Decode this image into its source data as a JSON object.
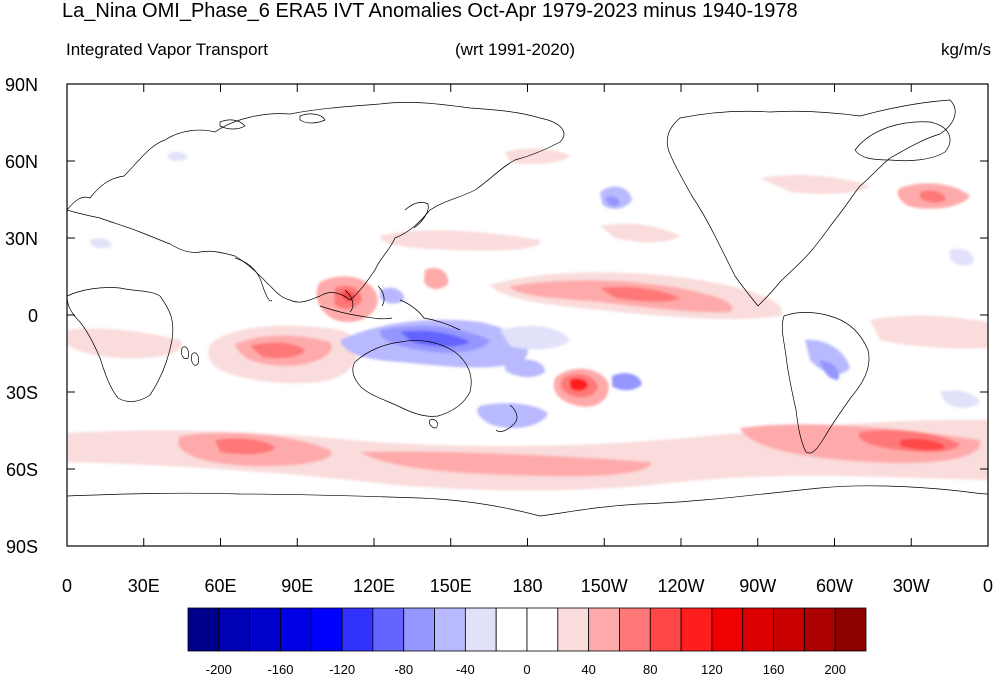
{
  "header": {
    "title": "La_Nina OMI_Phase_6 ERA5 IVT Anomalies Oct-Apr 1979-2023 minus 1940-1978",
    "left_label": "Integrated Vapor Transport",
    "center_label": "(wrt 1991-2020)",
    "right_label": "kg/m/s"
  },
  "map": {
    "lat_labels": [
      "90N",
      "60N",
      "30N",
      "0",
      "30S",
      "60S",
      "90S"
    ],
    "lon_labels": [
      "0",
      "30E",
      "60E",
      "90E",
      "120E",
      "150E",
      "180",
      "150W",
      "120W",
      "90W",
      "60W",
      "30W",
      "0"
    ]
  },
  "colorbar": {
    "colors": [
      "#00008c",
      "#0000b4",
      "#0000cd",
      "#0000e6",
      "#0000ff",
      "#3232ff",
      "#6464ff",
      "#9696ff",
      "#b9b9ff",
      "#e1e1fa",
      "#ffffff",
      "#ffffff",
      "#fadcdc",
      "#ffaaaa",
      "#ff7878",
      "#ff4646",
      "#ff1e1e",
      "#f00000",
      "#dc0000",
      "#c80000",
      "#aa0000",
      "#8c0000"
    ],
    "labels": [
      "-200",
      "-160",
      "-120",
      "-80",
      "-40",
      "0",
      "40",
      "80",
      "120",
      "160",
      "200"
    ]
  }
}
